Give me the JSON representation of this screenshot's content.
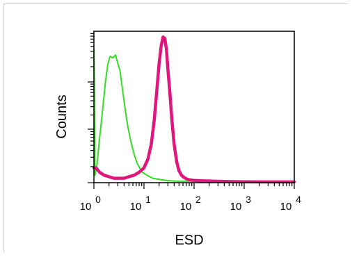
{
  "chart_data": {
    "type": "histogram",
    "xlabel": "ESD",
    "ylabel": "Counts",
    "x_scale": "log",
    "xlim": [
      1,
      10000
    ],
    "x_tick_labels": [
      {
        "base": "10",
        "exp": "0",
        "value": 1
      },
      {
        "base": "10",
        "exp": "1",
        "value": 10
      },
      {
        "base": "10",
        "exp": "2",
        "value": 100
      },
      {
        "base": "10",
        "exp": "3",
        "value": 1000
      },
      {
        "base": "10",
        "exp": "4",
        "value": 10000
      }
    ],
    "ylim": [
      0,
      1
    ],
    "grid": false,
    "legend": "none",
    "series": [
      {
        "color": "#33dd22",
        "x": [
          1.0,
          1.05,
          1.15,
          1.3,
          1.5,
          1.7,
          1.9,
          2.1,
          2.4,
          2.7,
          3.0,
          3.3,
          3.6,
          4.0,
          4.4,
          4.8,
          5.3,
          5.8,
          6.5,
          7.3,
          8.2,
          9.2,
          10.3,
          11.5,
          13,
          15,
          18,
          22,
          28,
          35,
          45,
          60,
          90,
          150,
          300,
          600,
          1000,
          2000,
          5000,
          10000
        ],
        "y": [
          0.9,
          0.05,
          0.12,
          0.3,
          0.5,
          0.68,
          0.8,
          0.85,
          0.84,
          0.86,
          0.8,
          0.76,
          0.66,
          0.55,
          0.45,
          0.37,
          0.3,
          0.24,
          0.18,
          0.13,
          0.1,
          0.07,
          0.06,
          0.05,
          0.04,
          0.03,
          0.025,
          0.02,
          0.015,
          0.012,
          0.01,
          0.01,
          0.01,
          0.008,
          0.008,
          0.007,
          0.006,
          0.006,
          0.005,
          0.005
        ]
      },
      {
        "color": "#e0157e",
        "x": [
          1.0,
          1.1,
          1.3,
          1.6,
          2.0,
          2.5,
          3.2,
          4.0,
          5.0,
          6.3,
          8.0,
          10,
          12,
          14,
          16,
          18,
          20,
          22,
          24,
          26,
          28,
          30,
          33,
          36,
          40,
          45,
          50,
          56,
          63,
          71,
          80,
          100,
          150,
          250,
          400,
          1000,
          3000,
          10000
        ],
        "y": [
          0.1,
          0.1,
          0.07,
          0.05,
          0.04,
          0.03,
          0.03,
          0.03,
          0.04,
          0.05,
          0.07,
          0.1,
          0.16,
          0.26,
          0.42,
          0.62,
          0.8,
          0.92,
          0.98,
          0.97,
          0.9,
          0.76,
          0.6,
          0.42,
          0.26,
          0.14,
          0.08,
          0.05,
          0.035,
          0.025,
          0.02,
          0.015,
          0.012,
          0.01,
          0.008,
          0.006,
          0.005,
          0.005
        ]
      }
    ]
  }
}
